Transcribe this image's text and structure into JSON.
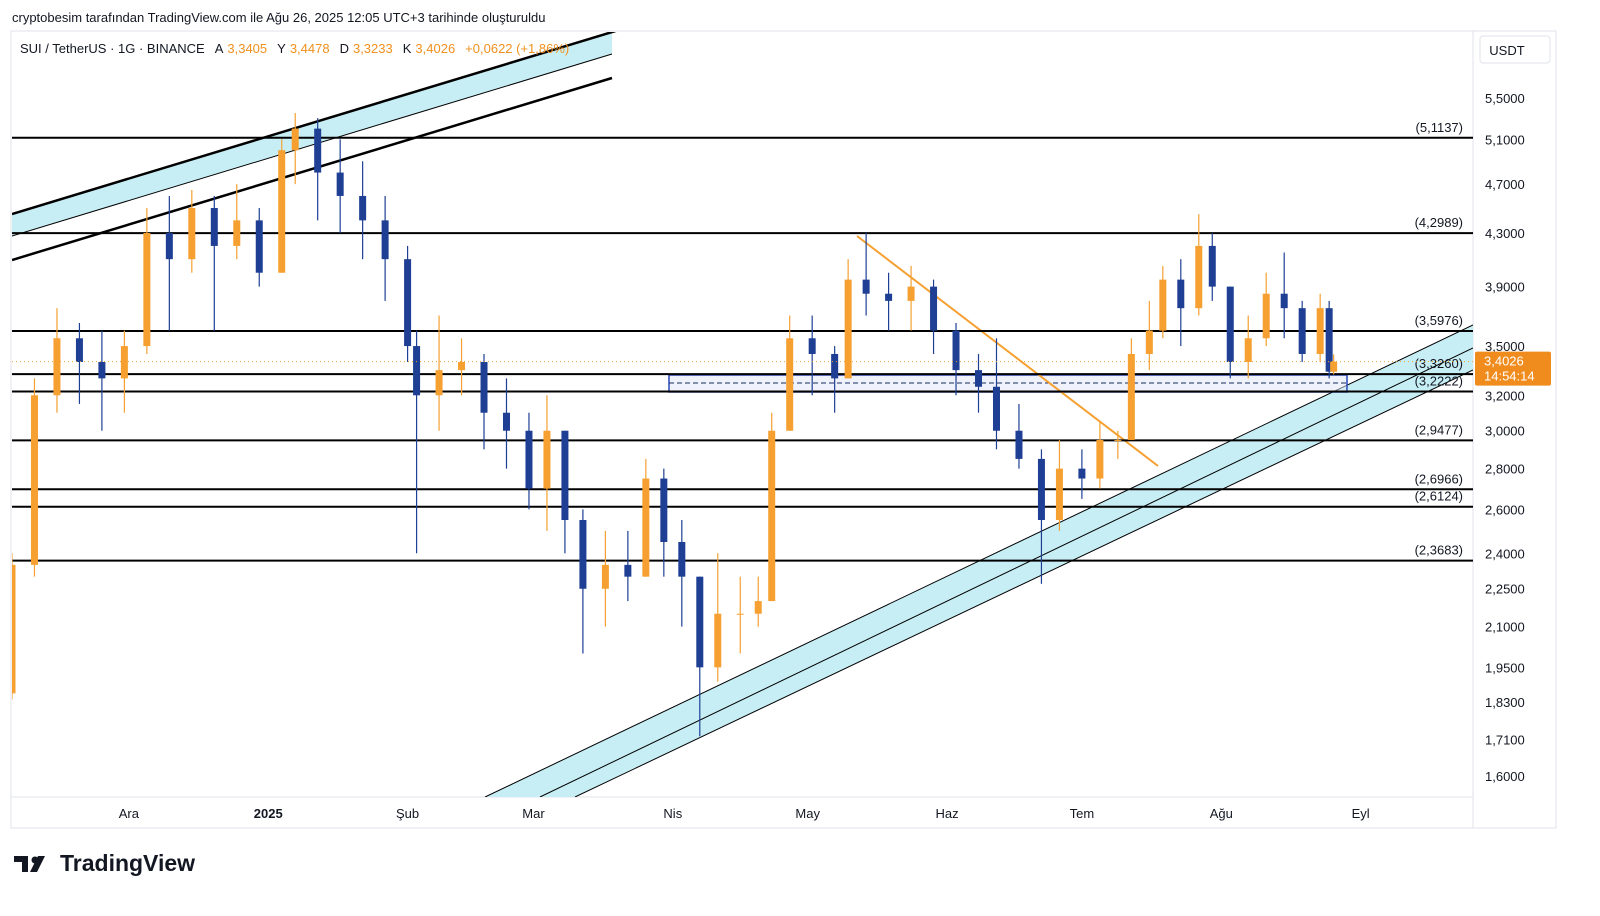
{
  "header": {
    "attribution": "cryptobesim tarafından TradingView.com ile Ağu 26, 2025 12:05 UTC+3 tarihinde oluşturuldu",
    "symbol": "SUI / TetherUS · 1G · BINANCE",
    "open_key": "A",
    "open": "3,3405",
    "high_key": "Y",
    "high": "3,4478",
    "low_key": "D",
    "low": "3,3233",
    "close_key": "K",
    "close": "3,4026",
    "change": "+0,0622 (+1,86%)",
    "currency": "USDT"
  },
  "logo": "TradingView",
  "chart_data": {
    "type": "candlestick",
    "log_scale": true,
    "up_color": "#f5a030",
    "down_color": "#1e3f94",
    "xlim": [
      "2024-11-05",
      "2025-09-26"
    ],
    "ylim": [
      1.54,
      6.2
    ],
    "xticks": [
      {
        "value": "2024-12-01",
        "label": "Ara"
      },
      {
        "value": "2025-01-01",
        "label": "2025"
      },
      {
        "value": "2025-02-01",
        "label": "Şub"
      },
      {
        "value": "2025-03-01",
        "label": "Mar"
      },
      {
        "value": "2025-04-01",
        "label": "Nis"
      },
      {
        "value": "2025-05-01",
        "label": "May"
      },
      {
        "value": "2025-06-01",
        "label": "Haz"
      },
      {
        "value": "2025-07-01",
        "label": "Tem"
      },
      {
        "value": "2025-08-01",
        "label": "Ağu"
      },
      {
        "value": "2025-09-01",
        "label": "Eyl"
      }
    ],
    "yticks": [
      {
        "value": 1.6,
        "label": "1,6000"
      },
      {
        "value": 1.71,
        "label": "1,7100"
      },
      {
        "value": 1.83,
        "label": "1,8300"
      },
      {
        "value": 1.95,
        "label": "1,9500"
      },
      {
        "value": 2.1,
        "label": "2,1000"
      },
      {
        "value": 2.25,
        "label": "2,2500"
      },
      {
        "value": 2.4,
        "label": "2,4000"
      },
      {
        "value": 2.6,
        "label": "2,6000"
      },
      {
        "value": 2.8,
        "label": "2,8000"
      },
      {
        "value": 3,
        "label": "3,0000"
      },
      {
        "value": 3.2,
        "label": "3,2000"
      },
      {
        "value": 3.5,
        "label": "3,5000"
      },
      {
        "value": 3.9,
        "label": "3,9000"
      },
      {
        "value": 4.3,
        "label": "4,3000"
      },
      {
        "value": 4.7,
        "label": "4,7000"
      },
      {
        "value": 5.1,
        "label": "5,1000"
      },
      {
        "value": 5.5,
        "label": "5,5000"
      }
    ],
    "levels": [
      {
        "value": 5.1137,
        "label": "(5,1137)"
      },
      {
        "value": 4.2989,
        "label": "(4,2989)"
      },
      {
        "value": 3.5976,
        "label": "(3,5976)"
      },
      {
        "value": 3.326,
        "label": "(3,3260)"
      },
      {
        "value": 3.2222,
        "label": "(3,2222)"
      },
      {
        "value": 2.9477,
        "label": "(2,9477)"
      },
      {
        "value": 2.6966,
        "label": "(2,6966)"
      },
      {
        "value": 2.6124,
        "label": "(2,6124)"
      },
      {
        "value": 2.3683,
        "label": "(2,3683)"
      }
    ],
    "last_price": {
      "value": 3.4026,
      "label": "3,4026"
    },
    "countdown": "14:54:14",
    "x": [
      "2024-11-05",
      "2024-11-10",
      "2024-11-15",
      "2024-11-20",
      "2024-11-25",
      "2024-11-30",
      "2024-12-05",
      "2024-12-10",
      "2024-12-15",
      "2024-12-20",
      "2024-12-25",
      "2024-12-30",
      "2025-01-04",
      "2025-01-07",
      "2025-01-12",
      "2025-01-17",
      "2025-01-22",
      "2025-01-27",
      "2025-02-01",
      "2025-02-03",
      "2025-02-08",
      "2025-02-13",
      "2025-02-18",
      "2025-02-23",
      "2025-02-28",
      "2025-03-04",
      "2025-03-08",
      "2025-03-12",
      "2025-03-17",
      "2025-03-22",
      "2025-03-26",
      "2025-03-30",
      "2025-04-03",
      "2025-04-07",
      "2025-04-11",
      "2025-04-16",
      "2025-04-20",
      "2025-04-23",
      "2025-04-27",
      "2025-05-02",
      "2025-05-07",
      "2025-05-10",
      "2025-05-14",
      "2025-05-19",
      "2025-05-24",
      "2025-05-29",
      "2025-06-03",
      "2025-06-08",
      "2025-06-12",
      "2025-06-17",
      "2025-06-22",
      "2025-06-26",
      "2025-07-01",
      "2025-07-05",
      "2025-07-09",
      "2025-07-12",
      "2025-07-16",
      "2025-07-19",
      "2025-07-23",
      "2025-07-27",
      "2025-07-30",
      "2025-08-03",
      "2025-08-07",
      "2025-08-11",
      "2025-08-15",
      "2025-08-19",
      "2025-08-23",
      "2025-08-25",
      "2025-08-26"
    ],
    "open": [
      1.86,
      2.35,
      3.2,
      3.55,
      3.4,
      3.3,
      3.5,
      4.3,
      4.1,
      4.5,
      4.2,
      4.4,
      4.0,
      5.0,
      5.2,
      4.8,
      4.6,
      4.4,
      4.1,
      3.5,
      3.2,
      3.35,
      3.4,
      3.1,
      3.0,
      2.7,
      3.0,
      2.55,
      2.25,
      2.35,
      2.3,
      2.75,
      2.45,
      2.3,
      1.95,
      2.15,
      2.15,
      2.2,
      3.0,
      3.55,
      3.45,
      3.3,
      3.95,
      3.85,
      3.8,
      3.9,
      3.6,
      3.35,
      3.25,
      3.0,
      2.85,
      2.55,
      2.8,
      2.75,
      2.95,
      2.95,
      3.45,
      3.6,
      3.95,
      3.75,
      4.2,
      3.9,
      3.4,
      3.55,
      3.85,
      3.75,
      3.45,
      3.75,
      3.3405
    ],
    "high": [
      2.4,
      3.3,
      3.75,
      3.65,
      3.6,
      3.6,
      4.5,
      4.6,
      4.65,
      4.6,
      4.7,
      4.5,
      5.1,
      5.35,
      5.3,
      5.1,
      4.9,
      4.6,
      4.2,
      3.6,
      3.7,
      3.55,
      3.45,
      3.3,
      3.1,
      3.2,
      3.0,
      2.6,
      2.5,
      2.5,
      2.85,
      2.8,
      2.55,
      2.3,
      2.4,
      2.3,
      2.3,
      3.1,
      3.7,
      3.7,
      3.5,
      4.1,
      4.3,
      4.0,
      4.05,
      3.95,
      3.65,
      3.45,
      3.55,
      3.15,
      2.9,
      2.95,
      2.9,
      3.05,
      3.0,
      3.55,
      3.8,
      4.05,
      4.1,
      4.45,
      4.3,
      3.9,
      3.7,
      4.0,
      4.15,
      3.8,
      3.85,
      3.8,
      3.4478
    ],
    "low": [
      1.84,
      2.3,
      3.1,
      3.15,
      3.0,
      3.1,
      3.45,
      3.6,
      4.0,
      3.6,
      4.1,
      3.9,
      4.0,
      4.7,
      4.4,
      4.3,
      4.1,
      3.8,
      3.4,
      2.4,
      3.0,
      3.2,
      2.9,
      2.8,
      2.6,
      2.5,
      2.4,
      2.0,
      2.1,
      2.2,
      2.3,
      2.3,
      2.1,
      1.72,
      1.9,
      2.0,
      2.1,
      2.2,
      3.0,
      3.2,
      3.1,
      3.3,
      3.7,
      3.6,
      3.6,
      3.45,
      3.2,
      3.1,
      2.9,
      2.8,
      2.27,
      2.5,
      2.65,
      2.7,
      2.85,
      2.95,
      3.35,
      3.55,
      3.5,
      3.7,
      3.8,
      3.3,
      3.3,
      3.5,
      3.55,
      3.4,
      3.4,
      3.3,
      3.3233
    ],
    "close": [
      2.35,
      3.2,
      3.55,
      3.4,
      3.3,
      3.5,
      4.3,
      4.1,
      4.5,
      4.2,
      4.4,
      4.0,
      5.0,
      5.2,
      4.8,
      4.6,
      4.4,
      4.1,
      3.5,
      3.2,
      3.35,
      3.4,
      3.1,
      3.0,
      2.7,
      3.0,
      2.55,
      2.25,
      2.35,
      2.3,
      2.75,
      2.45,
      2.3,
      1.95,
      2.15,
      2.15,
      2.2,
      3.0,
      3.55,
      3.45,
      3.3,
      3.95,
      3.85,
      3.8,
      3.9,
      3.6,
      3.35,
      3.25,
      3.0,
      2.85,
      2.55,
      2.8,
      2.75,
      2.95,
      2.95,
      3.45,
      3.6,
      3.95,
      3.75,
      4.2,
      3.9,
      3.4,
      3.55,
      3.85,
      3.75,
      3.45,
      3.75,
      3.3405,
      3.4026
    ]
  }
}
